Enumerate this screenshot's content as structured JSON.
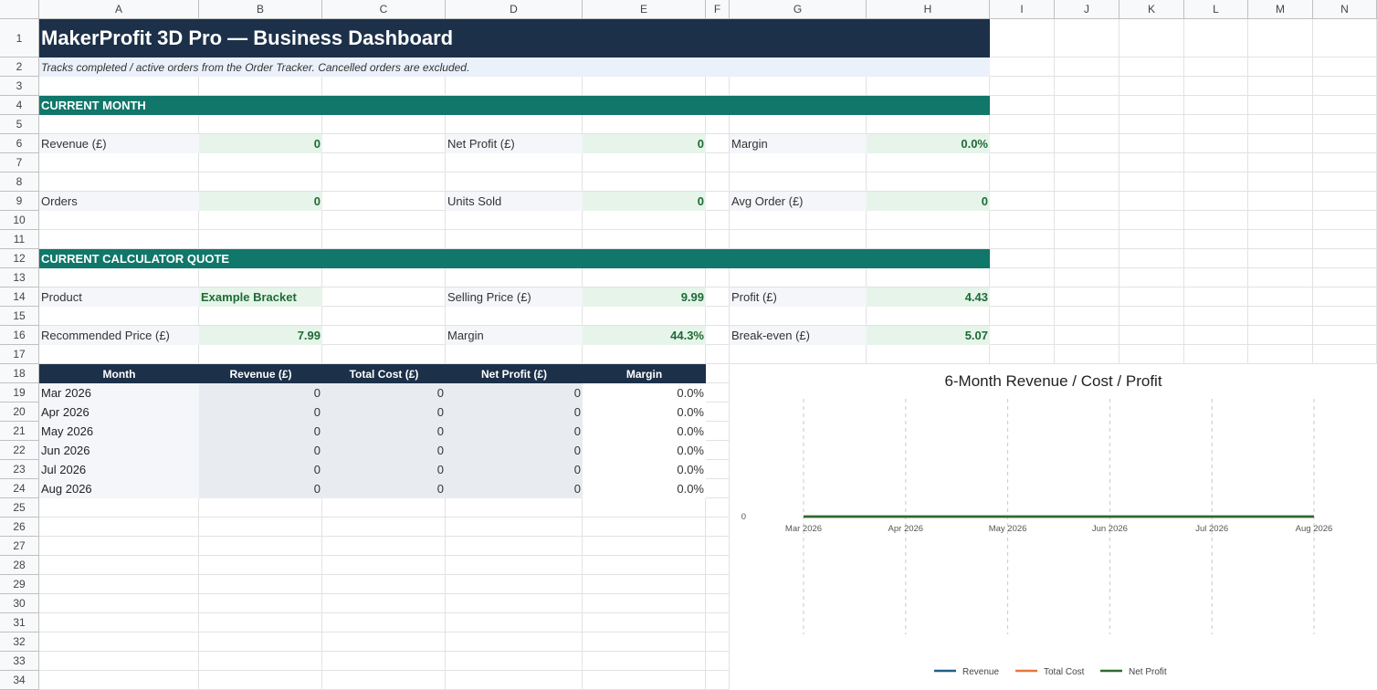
{
  "columns": [
    "A",
    "B",
    "C",
    "D",
    "E",
    "F",
    "G",
    "H",
    "I",
    "J",
    "K",
    "L",
    "M",
    "N"
  ],
  "rows": [
    "1",
    "2",
    "3",
    "4",
    "5",
    "6",
    "7",
    "8",
    "9",
    "10",
    "11",
    "12",
    "13",
    "14",
    "15",
    "16",
    "17",
    "18",
    "19",
    "20",
    "21",
    "22",
    "23",
    "24",
    "25",
    "26",
    "27",
    "28",
    "29",
    "30",
    "31",
    "32",
    "33",
    "34"
  ],
  "title": "MakerProfit 3D Pro — Business Dashboard",
  "subtitle": "Tracks completed / active orders from the Order Tracker. Cancelled orders are excluded.",
  "current_month": {
    "heading": "CURRENT MONTH",
    "revenue_label": "Revenue (£)",
    "revenue_value": "0",
    "net_profit_label": "Net Profit (£)",
    "net_profit_value": "0",
    "margin_label": "Margin",
    "margin_value": "0.0%",
    "orders_label": "Orders",
    "orders_value": "0",
    "units_label": "Units Sold",
    "units_value": "0",
    "avg_order_label": "Avg Order (£)",
    "avg_order_value": "0"
  },
  "calculator_quote": {
    "heading": "CURRENT CALCULATOR QUOTE",
    "product_label": "Product",
    "product_value": "Example Bracket",
    "selling_price_label": "Selling Price (£)",
    "selling_price_value": "9.99",
    "profit_label": "Profit (£)",
    "profit_value": "4.43",
    "recommended_label": "Recommended Price (£)",
    "recommended_value": "7.99",
    "margin_label": "Margin",
    "margin_value": "44.3%",
    "breakeven_label": "Break-even (£)",
    "breakeven_value": "5.07"
  },
  "table": {
    "headers": [
      "Month",
      "Revenue (£)",
      "Total Cost (£)",
      "Net Profit (£)",
      "Margin"
    ],
    "rows": [
      [
        "Mar 2026",
        "0",
        "0",
        "0",
        "0.0%"
      ],
      [
        "Apr 2026",
        "0",
        "0",
        "0",
        "0.0%"
      ],
      [
        "May 2026",
        "0",
        "0",
        "0",
        "0.0%"
      ],
      [
        "Jun 2026",
        "0",
        "0",
        "0",
        "0.0%"
      ],
      [
        "Jul 2026",
        "0",
        "0",
        "0",
        "0.0%"
      ],
      [
        "Aug 2026",
        "0",
        "0",
        "0",
        "0.0%"
      ]
    ]
  },
  "chart_data": {
    "type": "line",
    "title": "6-Month Revenue / Cost / Profit",
    "x": [
      "Mar 2026",
      "Apr 2026",
      "May 2026",
      "Jun 2026",
      "Jul 2026",
      "Aug 2026"
    ],
    "y_ticks": [
      "0"
    ],
    "series": [
      {
        "name": "Revenue",
        "color": "#1f5f8b",
        "values": [
          0,
          0,
          0,
          0,
          0,
          0
        ]
      },
      {
        "name": "Total Cost",
        "color": "#e8773a",
        "values": [
          0,
          0,
          0,
          0,
          0,
          0
        ]
      },
      {
        "name": "Net Profit",
        "color": "#2e6b2e",
        "values": [
          0,
          0,
          0,
          0,
          0,
          0
        ]
      }
    ],
    "grid": "vertical dashed",
    "legend": "bottom"
  },
  "colors": {
    "title_bg": "#1c3049",
    "section_bg": "#10776a",
    "value_bg": "#e6f4ea",
    "value_text": "#1e6b35"
  }
}
